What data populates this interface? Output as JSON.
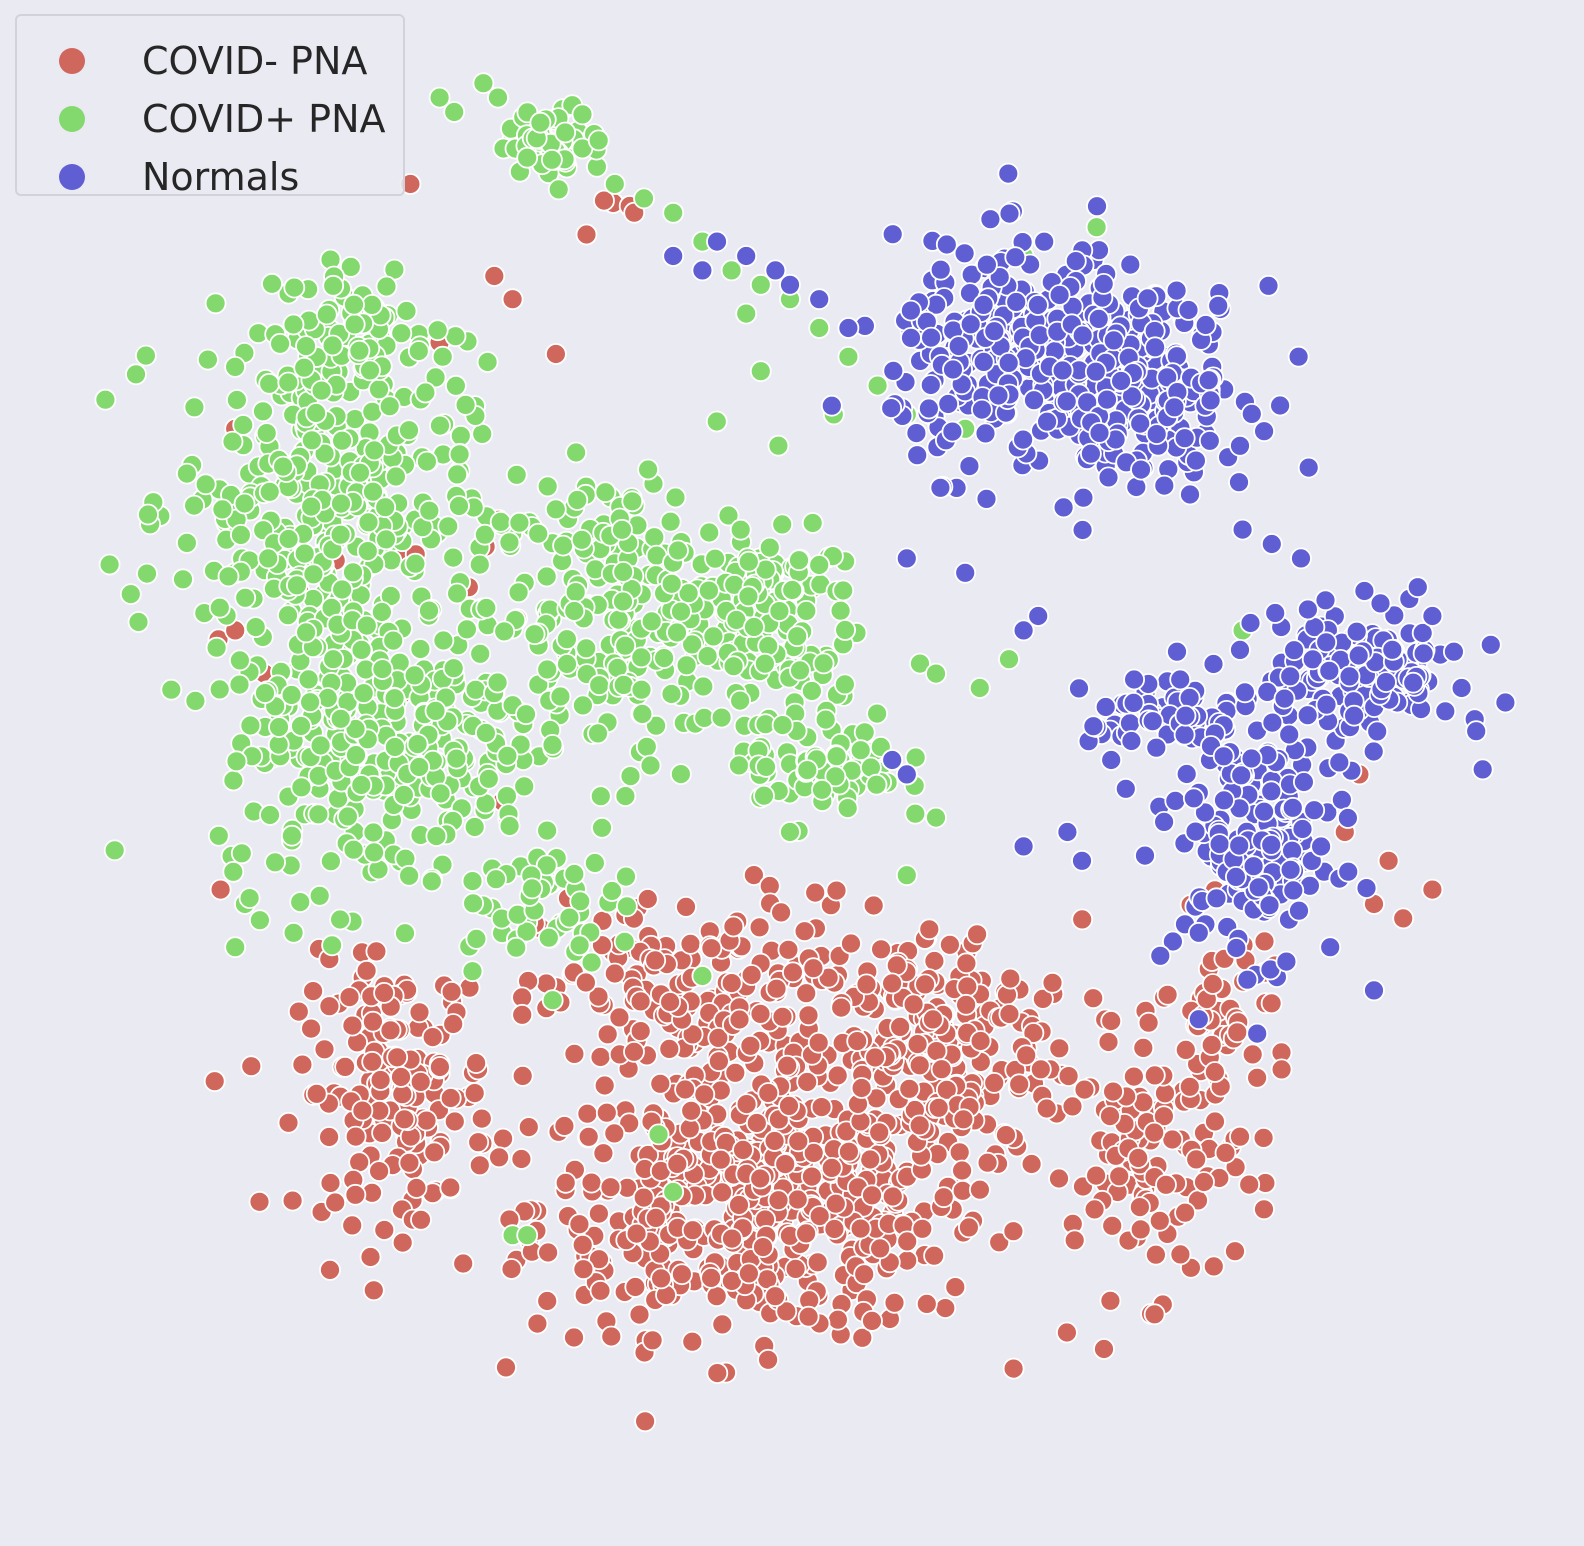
{
  "chart_data": {
    "type": "scatter",
    "title": "",
    "xlabel": "",
    "ylabel": "",
    "grid": false,
    "axes_visible": false,
    "legend_placement": "top-left",
    "background_color": "#eaeaf2",
    "point_edge_color": "#ffffff",
    "xlim": [
      0,
      100
    ],
    "ylim": [
      0,
      100
    ],
    "series": [
      {
        "name": "COVID- PNA",
        "color": "#d0675c",
        "clusters": [
          {
            "cx": 48,
            "cy": 19,
            "sx": 14,
            "sy": 8,
            "n": 520
          },
          {
            "cx": 60,
            "cy": 30,
            "sx": 9,
            "sy": 8,
            "n": 230
          },
          {
            "cx": 44,
            "cy": 33,
            "sx": 10,
            "sy": 7,
            "n": 200
          },
          {
            "cx": 23,
            "cy": 27,
            "sx": 6,
            "sy": 8,
            "n": 170
          },
          {
            "cx": 75,
            "cy": 22,
            "sx": 5,
            "sy": 8,
            "n": 110
          },
          {
            "cx": 80,
            "cy": 32,
            "sx": 4,
            "sy": 6,
            "n": 50
          },
          {
            "cx": 25,
            "cy": 58,
            "sx": 10,
            "sy": 16,
            "n": 15
          },
          {
            "cx": 38,
            "cy": 88,
            "sx": 3,
            "sy": 2,
            "n": 5
          }
        ],
        "points": [
          [
            30,
            96
          ],
          [
            31,
            82
          ],
          [
            24,
            90
          ],
          [
            12,
            73
          ],
          [
            14,
            56
          ],
          [
            11,
            41
          ],
          [
            92,
            39
          ],
          [
            94,
            41
          ],
          [
            90,
            40
          ],
          [
            89,
            49
          ],
          [
            91,
            43
          ],
          [
            88,
            45
          ],
          [
            12,
            59
          ],
          [
            26,
            79
          ],
          [
            28,
            62
          ]
        ]
      },
      {
        "name": "COVID+ PNA",
        "color": "#84d96e",
        "clusters": [
          {
            "cx": 18,
            "cy": 68,
            "sx": 9,
            "sy": 10,
            "n": 330
          },
          {
            "cx": 22,
            "cy": 52,
            "sx": 10,
            "sy": 10,
            "n": 330
          },
          {
            "cx": 38,
            "cy": 60,
            "sx": 8,
            "sy": 9,
            "n": 230
          },
          {
            "cx": 48,
            "cy": 60,
            "sx": 6,
            "sy": 6,
            "n": 130
          },
          {
            "cx": 52,
            "cy": 50,
            "sx": 5,
            "sy": 4,
            "n": 80
          },
          {
            "cx": 34,
            "cy": 93,
            "sx": 3,
            "sy": 2,
            "n": 70
          },
          {
            "cx": 20,
            "cy": 80,
            "sx": 5,
            "sy": 4,
            "n": 70
          },
          {
            "cx": 32,
            "cy": 40,
            "sx": 5,
            "sy": 4,
            "n": 50
          }
        ],
        "points": [
          [
            26,
            96
          ],
          [
            27,
            95
          ],
          [
            29,
            97
          ],
          [
            30,
            96
          ],
          [
            38,
            90
          ],
          [
            40,
            89
          ],
          [
            42,
            88
          ],
          [
            44,
            86
          ],
          [
            46,
            84
          ],
          [
            48,
            83
          ],
          [
            50,
            82
          ],
          [
            52,
            80
          ],
          [
            54,
            78
          ],
          [
            56,
            76
          ],
          [
            58,
            74
          ],
          [
            53,
            74
          ],
          [
            48,
            77
          ],
          [
            47,
            81
          ],
          [
            60,
            56
          ],
          [
            63,
            55
          ],
          [
            65,
            57
          ],
          [
            60,
            46
          ],
          [
            58,
            42
          ],
          [
            50,
            45
          ],
          [
            44,
            35
          ],
          [
            41,
            24
          ],
          [
            31,
            17
          ],
          [
            32,
            17
          ],
          [
            42,
            20
          ],
          [
            12,
            37
          ],
          [
            16,
            38
          ],
          [
            62,
            73
          ],
          [
            66,
            85
          ],
          [
            71,
            87
          ],
          [
            80,
            54
          ],
          [
            81,
            59
          ]
        ]
      },
      {
        "name": "Normals",
        "color": "#5f5fd3",
        "clusters": [
          {
            "cx": 67,
            "cy": 78,
            "sx": 9,
            "sy": 7,
            "n": 340
          },
          {
            "cx": 75,
            "cy": 76,
            "sx": 6,
            "sy": 6,
            "n": 140
          },
          {
            "cx": 82,
            "cy": 44,
            "sx": 5,
            "sy": 7,
            "n": 170
          },
          {
            "cx": 89,
            "cy": 56,
            "sx": 6,
            "sy": 4,
            "n": 150
          },
          {
            "cx": 76,
            "cy": 53,
            "sx": 5,
            "sy": 3,
            "n": 60
          }
        ],
        "points": [
          [
            47,
            85
          ],
          [
            49,
            84
          ],
          [
            50,
            83
          ],
          [
            52,
            82
          ],
          [
            54,
            80
          ],
          [
            45,
            86
          ],
          [
            42,
            85
          ],
          [
            44,
            84
          ],
          [
            58,
            64
          ],
          [
            62,
            63
          ],
          [
            66,
            59
          ],
          [
            67,
            60
          ],
          [
            72,
            50
          ],
          [
            73,
            48
          ],
          [
            70,
            43
          ],
          [
            78,
            32
          ],
          [
            82,
            31
          ],
          [
            90,
            34
          ],
          [
            93,
            62
          ],
          [
            94,
            60
          ],
          [
            96,
            55
          ],
          [
            97,
            52
          ],
          [
            98,
            58
          ],
          [
            81,
            66
          ],
          [
            83,
            65
          ],
          [
            85,
            64
          ],
          [
            57,
            50
          ],
          [
            58,
            49
          ],
          [
            87,
            37
          ],
          [
            84,
            36
          ],
          [
            78,
            38
          ],
          [
            69,
            45
          ],
          [
            66,
            44
          ]
        ]
      }
    ]
  }
}
